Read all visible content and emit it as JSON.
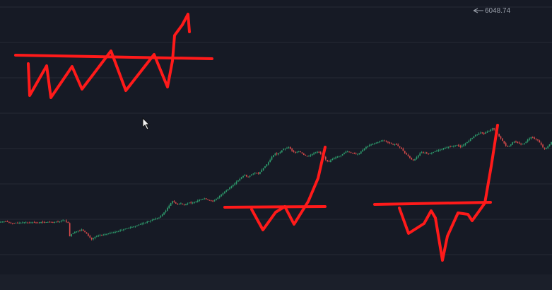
{
  "chart_data": {
    "type": "candlestick",
    "grid": true,
    "y_label_visible": "6048.74",
    "y_label_value": 6048.74,
    "colors": {
      "background": "#161a25",
      "grid": "#262a35",
      "up": "#2e9e6e",
      "down": "#d94a4a",
      "annotation": "#ff1a1a",
      "label_text": "#9aa0ab"
    },
    "closes": [
      4760,
      4761,
      4763,
      4762,
      4759,
      4756,
      4753,
      4751,
      4752,
      4754,
      4753,
      4752,
      4754,
      4756,
      4757,
      4756,
      4754,
      4755,
      4756,
      4757,
      4756,
      4754,
      4755,
      4757,
      4758,
      4757,
      4756,
      4758,
      4759,
      4758,
      4757,
      4756,
      4758,
      4760,
      4761,
      4762,
      4766,
      4769,
      4768,
      4760,
      4753,
      4670,
      4683,
      4690,
      4696,
      4700,
      4705,
      4704,
      4712,
      4703,
      4695,
      4686,
      4672,
      4662,
      4651,
      4658,
      4666,
      4672,
      4674,
      4676,
      4677,
      4680,
      4683,
      4684,
      4688,
      4690,
      4693,
      4694,
      4697,
      4701,
      4703,
      4707,
      4709,
      4713,
      4717,
      4719,
      4722,
      4725,
      4727,
      4731,
      4734,
      4738,
      4742,
      4746,
      4749,
      4751,
      4755,
      4761,
      4763,
      4768,
      4772,
      4775,
      4779,
      4783,
      4786,
      4795,
      4806,
      4818,
      4829,
      4846,
      4860,
      4876,
      4888,
      4882,
      4873,
      4867,
      4871,
      4875,
      4870,
      4865,
      4871,
      4874,
      4879,
      4876,
      4879,
      4883,
      4885,
      4891,
      4896,
      4899,
      4902,
      4905,
      4900,
      4896,
      4894,
      4890,
      4886,
      4893,
      4902,
      4911,
      4920,
      4929,
      4937,
      4945,
      4954,
      4962,
      4972,
      4980,
      4990,
      4998,
      5008,
      5017,
      5026,
      5036,
      5045,
      5051,
      5041,
      5040,
      5047,
      5054,
      5059,
      5065,
      5062,
      5058,
      5070,
      5082,
      5093,
      5105,
      5117,
      5130,
      5144,
      5164,
      5174,
      5183,
      5179,
      5186,
      5192,
      5203,
      5210,
      5214,
      5219,
      5222,
      5212,
      5200,
      5194,
      5191,
      5194,
      5198,
      5192,
      5184,
      5175,
      5171,
      5168,
      5169,
      5174,
      5180,
      5186,
      5190,
      5195,
      5193,
      5182,
      5173,
      5162,
      5146,
      5135,
      5133,
      5142,
      5149,
      5155,
      5160,
      5164,
      5168,
      5171,
      5180,
      5189,
      5195,
      5196,
      5193,
      5188,
      5186,
      5183,
      5179,
      5178,
      5186,
      5196,
      5206,
      5214,
      5224,
      5231,
      5236,
      5239,
      5242,
      5246,
      5250,
      5255,
      5258,
      5262,
      5265,
      5262,
      5258,
      5252,
      5248,
      5244,
      5240,
      5241,
      5238,
      5230,
      5222,
      5213,
      5200,
      5186,
      5178,
      5168,
      5157,
      5147,
      5142,
      5150,
      5161,
      5172,
      5184,
      5191,
      5186,
      5189,
      5185,
      5182,
      5185,
      5188,
      5193,
      5198,
      5202,
      5205,
      5208,
      5212,
      5217,
      5219,
      5222,
      5226,
      5225,
      5229,
      5231,
      5234,
      5237,
      5230,
      5224,
      5233,
      5240,
      5247,
      5255,
      5263,
      5272,
      5281,
      5290,
      5298,
      5302,
      5308,
      5313,
      5310,
      5306,
      5315,
      5319,
      5325,
      5331,
      5340,
      5332,
      5320,
      5307,
      5290,
      5277,
      5262,
      5247,
      5232,
      5226,
      5232,
      5240,
      5253,
      5257,
      5255,
      5250,
      5246,
      5242,
      5244,
      5248,
      5256,
      5270,
      5278,
      5285,
      5281,
      5275,
      5271,
      5266,
      5252,
      5238,
      5221,
      5213,
      5220,
      5229,
      5241,
      5255
    ]
  }
}
